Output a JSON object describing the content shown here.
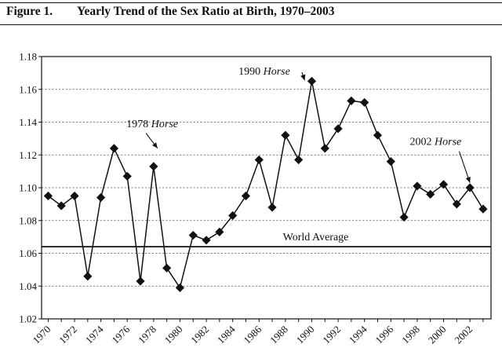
{
  "figure": {
    "number": "Figure 1.",
    "title": "Yearly Trend of the Sex Ratio at Birth, 1970–2003"
  },
  "chart_data": {
    "type": "line",
    "title": "Yearly Trend of the Sex Ratio at Birth, 1970–2003",
    "xlabel": "",
    "ylabel": "",
    "x": [
      1970,
      1971,
      1972,
      1973,
      1974,
      1975,
      1976,
      1977,
      1978,
      1979,
      1980,
      1981,
      1982,
      1983,
      1984,
      1985,
      1986,
      1987,
      1988,
      1989,
      1990,
      1991,
      1992,
      1993,
      1994,
      1995,
      1996,
      1997,
      1998,
      1999,
      2000,
      2001,
      2002,
      2003
    ],
    "values": [
      1.095,
      1.089,
      1.095,
      1.046,
      1.094,
      1.124,
      1.107,
      1.043,
      1.113,
      1.051,
      1.039,
      1.071,
      1.068,
      1.073,
      1.083,
      1.095,
      1.117,
      1.088,
      1.132,
      1.117,
      1.165,
      1.124,
      1.136,
      1.153,
      1.152,
      1.132,
      1.116,
      1.082,
      1.101,
      1.096,
      1.102,
      1.09,
      1.1,
      1.087
    ],
    "ylim": [
      1.02,
      1.18
    ],
    "xlim": [
      1969.5,
      2003.6
    ],
    "y_ticks": [
      "1.02",
      "1.04",
      "1.06",
      "1.08",
      "1.10",
      "1.12",
      "1.14",
      "1.16",
      "1.18"
    ],
    "x_ticks": [
      "1970",
      "1972",
      "1974",
      "1976",
      "1978",
      "1980",
      "1982",
      "1984",
      "1986",
      "1988",
      "1990",
      "1992",
      "1994",
      "1996",
      "1998",
      "2000",
      "2002"
    ],
    "grid": true,
    "reference_line": {
      "label": "World Average",
      "value": 1.064
    },
    "annotations": [
      {
        "year_text": "1990",
        "zodiac_text": "Horse",
        "target_x": 1990,
        "target_y": 1.165,
        "label_x": 1986.4,
        "label_y": 1.169
      },
      {
        "year_text": "1978",
        "zodiac_text": "Horse",
        "target_x": 1978,
        "target_y": 1.115,
        "label_x": 1977.9,
        "label_y": 1.137
      },
      {
        "year_text": "2002",
        "zodiac_text": "Horse",
        "target_x": 2002,
        "target_y": 1.104,
        "label_x": 1999.4,
        "label_y": 1.126
      }
    ],
    "colors": {
      "line": "#111111",
      "marker": "#111111",
      "grid": "#555555"
    }
  }
}
